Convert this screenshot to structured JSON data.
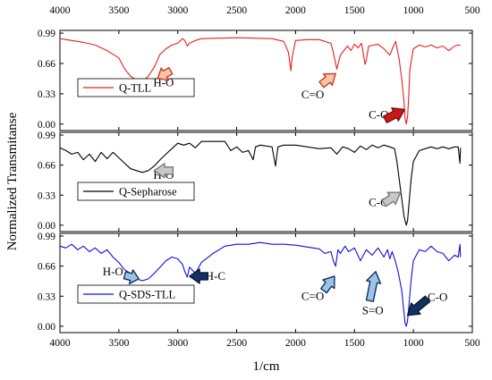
{
  "chart_data": {
    "type": "line",
    "xlabel": "1/cm",
    "ylabel": "Normalized Transmitanse",
    "x_range": [
      4000,
      500
    ],
    "x_ticks": [
      4000,
      3500,
      3000,
      2500,
      2000,
      1500,
      1000,
      500
    ],
    "y_range": [
      -0.07,
      1.02
    ],
    "y_ticks": [
      0.0,
      0.33,
      0.66,
      0.99
    ],
    "y_tick_labels": [
      "0.00",
      "0.33",
      "0.66",
      "0.99"
    ],
    "grid": false,
    "panels": [
      {
        "name": "Q-TLL",
        "color": "#e8201f",
        "legend": "Q-TLL",
        "points": [
          [
            4000,
            0.93
          ],
          [
            3900,
            0.91
          ],
          [
            3800,
            0.89
          ],
          [
            3700,
            0.86
          ],
          [
            3600,
            0.8
          ],
          [
            3500,
            0.72
          ],
          [
            3450,
            0.6
          ],
          [
            3400,
            0.52
          ],
          [
            3350,
            0.48
          ],
          [
            3300,
            0.47
          ],
          [
            3250,
            0.52
          ],
          [
            3200,
            0.62
          ],
          [
            3150,
            0.76
          ],
          [
            3100,
            0.82
          ],
          [
            3050,
            0.86
          ],
          [
            3000,
            0.88
          ],
          [
            2960,
            0.93
          ],
          [
            2940,
            0.91
          ],
          [
            2920,
            0.85
          ],
          [
            2900,
            0.88
          ],
          [
            2850,
            0.91
          ],
          [
            2800,
            0.93
          ],
          [
            2500,
            0.94
          ],
          [
            2200,
            0.93
          ],
          [
            2100,
            0.9
          ],
          [
            2060,
            0.78
          ],
          [
            2040,
            0.58
          ],
          [
            2030,
            0.72
          ],
          [
            2000,
            0.91
          ],
          [
            1900,
            0.92
          ],
          [
            1800,
            0.92
          ],
          [
            1700,
            0.88
          ],
          [
            1680,
            0.78
          ],
          [
            1650,
            0.6
          ],
          [
            1620,
            0.75
          ],
          [
            1560,
            0.85
          ],
          [
            1530,
            0.8
          ],
          [
            1500,
            0.87
          ],
          [
            1470,
            0.83
          ],
          [
            1440,
            0.88
          ],
          [
            1410,
            0.65
          ],
          [
            1400,
            0.7
          ],
          [
            1380,
            0.85
          ],
          [
            1300,
            0.87
          ],
          [
            1250,
            0.82
          ],
          [
            1200,
            0.75
          ],
          [
            1170,
            0.85
          ],
          [
            1150,
            0.9
          ],
          [
            1120,
            0.7
          ],
          [
            1100,
            0.5
          ],
          [
            1080,
            0.25
          ],
          [
            1070,
            0.06
          ],
          [
            1060,
            0.0
          ],
          [
            1050,
            0.08
          ],
          [
            1040,
            0.3
          ],
          [
            1030,
            0.6
          ],
          [
            1000,
            0.82
          ],
          [
            950,
            0.86
          ],
          [
            900,
            0.84
          ],
          [
            850,
            0.86
          ],
          [
            800,
            0.83
          ],
          [
            750,
            0.85
          ],
          [
            700,
            0.8
          ],
          [
            650,
            0.85
          ],
          [
            620,
            0.86
          ],
          [
            600,
            0.86
          ]
        ],
        "annotations": [
          {
            "text": "H-O",
            "x": 3120,
            "y": 0.45
          },
          {
            "text": "C=O",
            "x": 1855,
            "y": 0.32
          },
          {
            "text": "C-O",
            "x": 1295,
            "y": 0.1
          }
        ]
      },
      {
        "name": "Q-Sepharose",
        "color": "#000000",
        "legend": "Q-Sepharose",
        "points": [
          [
            4000,
            0.85
          ],
          [
            3950,
            0.82
          ],
          [
            3900,
            0.78
          ],
          [
            3850,
            0.8
          ],
          [
            3800,
            0.72
          ],
          [
            3750,
            0.78
          ],
          [
            3700,
            0.7
          ],
          [
            3650,
            0.8
          ],
          [
            3600,
            0.73
          ],
          [
            3550,
            0.8
          ],
          [
            3500,
            0.74
          ],
          [
            3450,
            0.68
          ],
          [
            3400,
            0.62
          ],
          [
            3350,
            0.6
          ],
          [
            3300,
            0.58
          ],
          [
            3250,
            0.6
          ],
          [
            3200,
            0.65
          ],
          [
            3150,
            0.72
          ],
          [
            3100,
            0.78
          ],
          [
            3050,
            0.84
          ],
          [
            3000,
            0.9
          ],
          [
            2950,
            0.88
          ],
          [
            2900,
            0.9
          ],
          [
            2850,
            0.85
          ],
          [
            2800,
            0.92
          ],
          [
            2700,
            0.92
          ],
          [
            2600,
            0.92
          ],
          [
            2550,
            0.82
          ],
          [
            2500,
            0.86
          ],
          [
            2450,
            0.8
          ],
          [
            2400,
            0.82
          ],
          [
            2360,
            0.72
          ],
          [
            2340,
            0.86
          ],
          [
            2300,
            0.88
          ],
          [
            2200,
            0.86
          ],
          [
            2170,
            0.65
          ],
          [
            2150,
            0.86
          ],
          [
            2100,
            0.88
          ],
          [
            2000,
            0.88
          ],
          [
            1900,
            0.86
          ],
          [
            1800,
            0.84
          ],
          [
            1700,
            0.85
          ],
          [
            1650,
            0.78
          ],
          [
            1600,
            0.86
          ],
          [
            1550,
            0.84
          ],
          [
            1500,
            0.8
          ],
          [
            1450,
            0.87
          ],
          [
            1400,
            0.83
          ],
          [
            1350,
            0.88
          ],
          [
            1300,
            0.85
          ],
          [
            1250,
            0.88
          ],
          [
            1200,
            0.86
          ],
          [
            1160,
            0.84
          ],
          [
            1140,
            0.7
          ],
          [
            1120,
            0.5
          ],
          [
            1100,
            0.3
          ],
          [
            1080,
            0.1
          ],
          [
            1060,
            0.0
          ],
          [
            1050,
            0.05
          ],
          [
            1040,
            0.2
          ],
          [
            1020,
            0.5
          ],
          [
            1000,
            0.7
          ],
          [
            950,
            0.82
          ],
          [
            900,
            0.84
          ],
          [
            850,
            0.86
          ],
          [
            800,
            0.84
          ],
          [
            750,
            0.86
          ],
          [
            700,
            0.84
          ],
          [
            650,
            0.86
          ],
          [
            620,
            0.86
          ],
          [
            605,
            0.68
          ],
          [
            600,
            0.85
          ]
        ],
        "annotations": [
          {
            "text": "H-O",
            "x": 3120,
            "y": 0.55
          },
          {
            "text": "C-O",
            "x": 1295,
            "y": 0.25
          }
        ]
      },
      {
        "name": "Q-SDS-TLL",
        "color": "#1010d8",
        "legend": "Q-SDS-TLL",
        "points": [
          [
            4000,
            0.88
          ],
          [
            3950,
            0.86
          ],
          [
            3900,
            0.9
          ],
          [
            3850,
            0.84
          ],
          [
            3800,
            0.88
          ],
          [
            3750,
            0.82
          ],
          [
            3700,
            0.86
          ],
          [
            3650,
            0.8
          ],
          [
            3600,
            0.84
          ],
          [
            3550,
            0.76
          ],
          [
            3500,
            0.7
          ],
          [
            3450,
            0.62
          ],
          [
            3400,
            0.58
          ],
          [
            3350,
            0.52
          ],
          [
            3300,
            0.5
          ],
          [
            3250,
            0.52
          ],
          [
            3200,
            0.58
          ],
          [
            3150,
            0.65
          ],
          [
            3100,
            0.72
          ],
          [
            3050,
            0.76
          ],
          [
            3000,
            0.74
          ],
          [
            2960,
            0.68
          ],
          [
            2940,
            0.6
          ],
          [
            2920,
            0.54
          ],
          [
            2900,
            0.65
          ],
          [
            2850,
            0.58
          ],
          [
            2800,
            0.7
          ],
          [
            2700,
            0.8
          ],
          [
            2600,
            0.88
          ],
          [
            2500,
            0.9
          ],
          [
            2400,
            0.9
          ],
          [
            2300,
            0.92
          ],
          [
            2200,
            0.9
          ],
          [
            2100,
            0.9
          ],
          [
            2000,
            0.89
          ],
          [
            1900,
            0.87
          ],
          [
            1800,
            0.85
          ],
          [
            1750,
            0.8
          ],
          [
            1700,
            0.82
          ],
          [
            1680,
            0.72
          ],
          [
            1660,
            0.66
          ],
          [
            1640,
            0.84
          ],
          [
            1620,
            0.8
          ],
          [
            1580,
            0.88
          ],
          [
            1550,
            0.82
          ],
          [
            1500,
            0.86
          ],
          [
            1450,
            0.72
          ],
          [
            1400,
            0.84
          ],
          [
            1350,
            0.78
          ],
          [
            1300,
            0.86
          ],
          [
            1250,
            0.76
          ],
          [
            1220,
            0.84
          ],
          [
            1200,
            0.74
          ],
          [
            1180,
            0.82
          ],
          [
            1150,
            0.7
          ],
          [
            1130,
            0.6
          ],
          [
            1100,
            0.4
          ],
          [
            1080,
            0.15
          ],
          [
            1070,
            0.03
          ],
          [
            1060,
            0.0
          ],
          [
            1050,
            0.06
          ],
          [
            1040,
            0.2
          ],
          [
            1020,
            0.5
          ],
          [
            1000,
            0.72
          ],
          [
            950,
            0.84
          ],
          [
            900,
            0.82
          ],
          [
            850,
            0.88
          ],
          [
            800,
            0.82
          ],
          [
            750,
            0.8
          ],
          [
            700,
            0.72
          ],
          [
            650,
            0.78
          ],
          [
            620,
            0.76
          ],
          [
            605,
            0.9
          ],
          [
            600,
            0.76
          ]
        ],
        "annotations": [
          {
            "text": "H-O",
            "x": 3550,
            "y": 0.6
          },
          {
            "text": "H-C",
            "x": 2680,
            "y": 0.55
          },
          {
            "text": "C=O",
            "x": 1855,
            "y": 0.33
          },
          {
            "text": "S=O",
            "x": 1345,
            "y": 0.17
          },
          {
            "text": "C-O",
            "x": 795,
            "y": 0.32
          }
        ]
      }
    ]
  },
  "styles": {
    "arrow_colors": {
      "red_panel": [
        "#f9c4a6",
        "#c81818"
      ],
      "black_panel": [
        "#c8c8c8"
      ],
      "blue_panel": [
        "#9cc4e8",
        "#14305e"
      ]
    }
  }
}
